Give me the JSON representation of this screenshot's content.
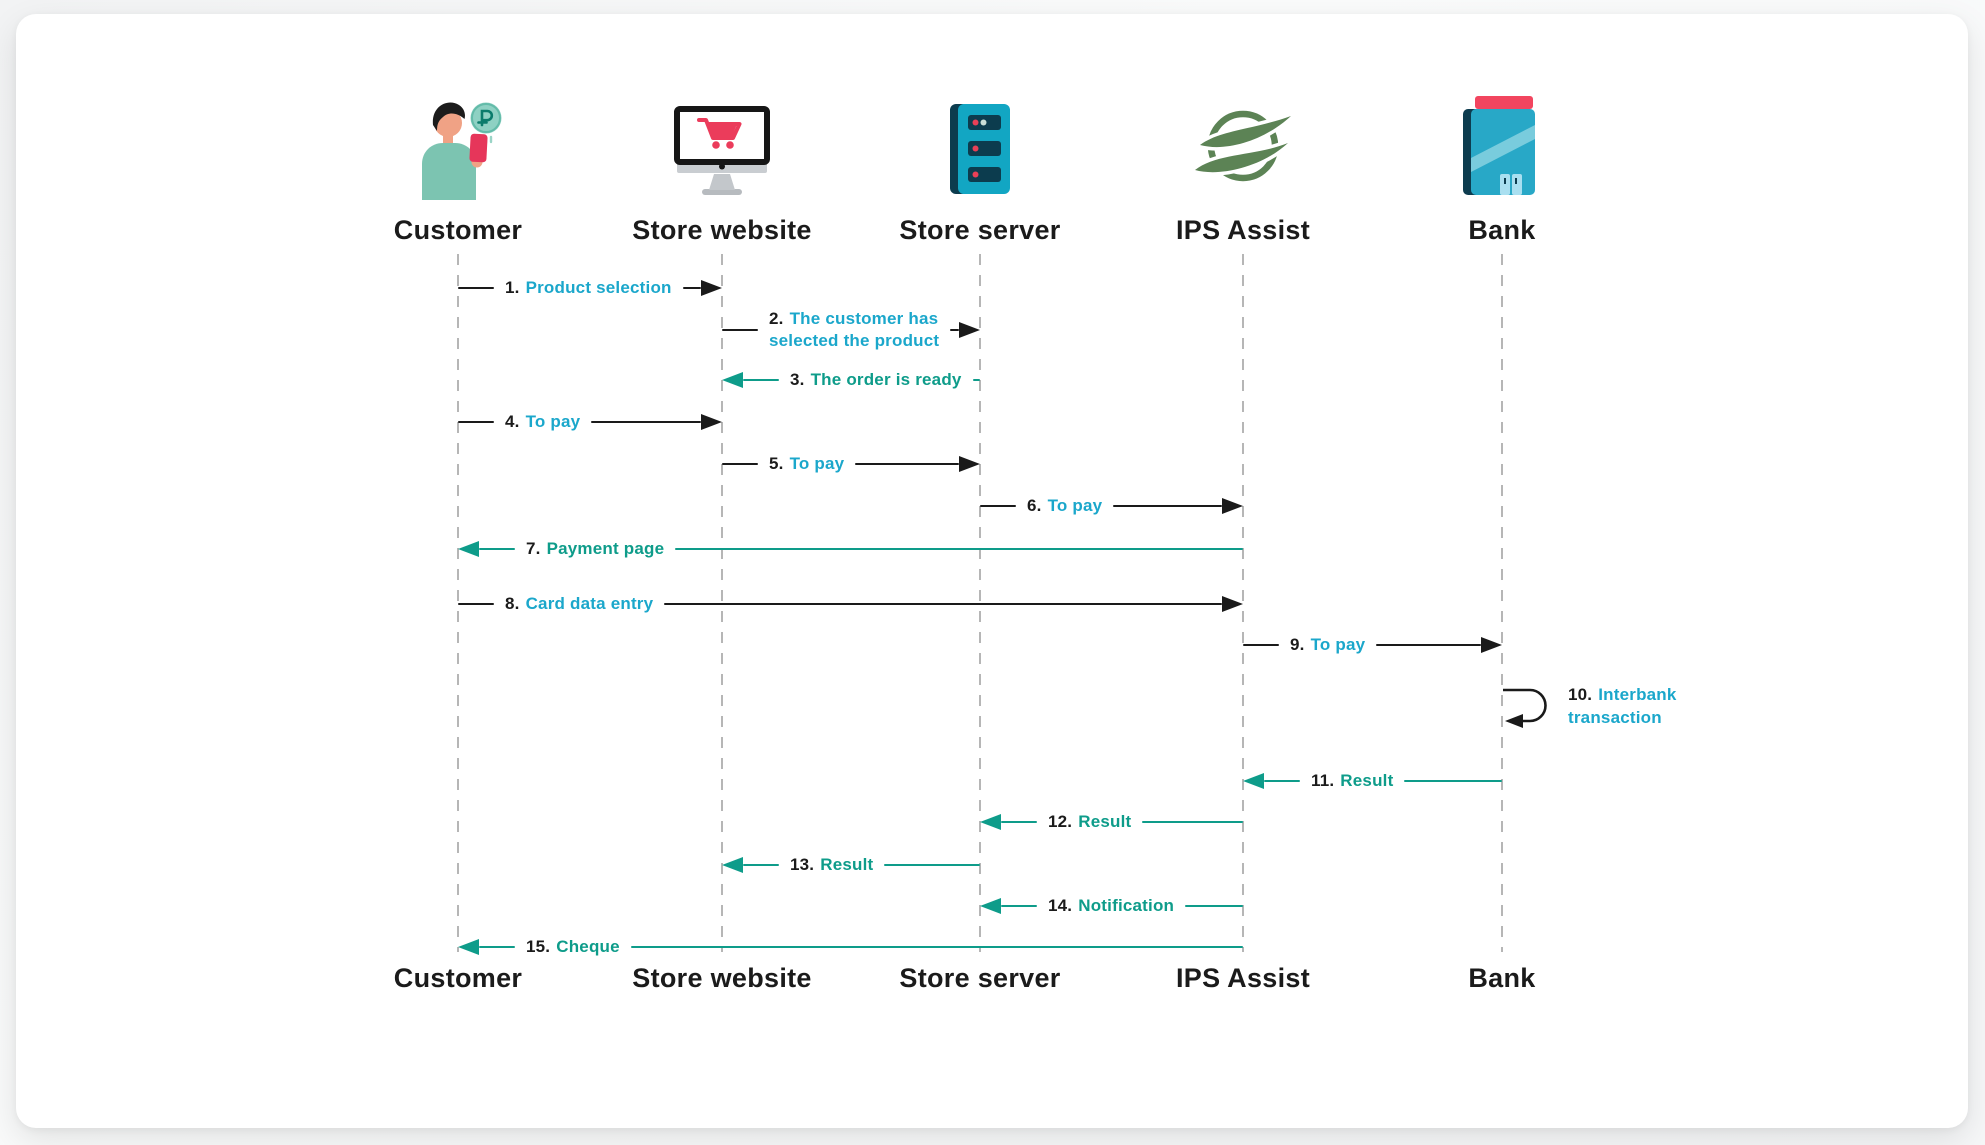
{
  "colors": {
    "request_label_cyan": "#1BA7CB",
    "response_teal": "#0E9C8A",
    "arrow_black": "#1A1A1A",
    "actor_label_black": "#1B1B1B",
    "lifeline_gray": "#B6B6B6"
  },
  "actors": [
    {
      "id": "customer",
      "label": "Customer",
      "icon": "customer-icon"
    },
    {
      "id": "website",
      "label": "Store website",
      "icon": "store-website-icon"
    },
    {
      "id": "server",
      "label": "Store server",
      "icon": "store-server-icon"
    },
    {
      "id": "ips",
      "label": "IPS Assist",
      "icon": "ips-assist-icon"
    },
    {
      "id": "bank",
      "label": "Bank",
      "icon": "bank-icon"
    }
  ],
  "messages": [
    {
      "num": "1.",
      "label": "Product selection",
      "from": "customer",
      "to": "website",
      "direction": "right",
      "arrow": "black",
      "label_color": "cyan"
    },
    {
      "num": "2.",
      "label": "The customer has selected the product",
      "lines": [
        "The customer has",
        "selected the product"
      ],
      "from": "website",
      "to": "server",
      "direction": "right",
      "arrow": "black",
      "label_color": "cyan"
    },
    {
      "num": "3.",
      "label": "The order is ready",
      "from": "server",
      "to": "website",
      "direction": "left",
      "arrow": "teal",
      "label_color": "teal"
    },
    {
      "num": "4.",
      "label": "To pay",
      "from": "customer",
      "to": "website",
      "direction": "right",
      "arrow": "black",
      "label_color": "cyan"
    },
    {
      "num": "5.",
      "label": "To pay",
      "from": "website",
      "to": "server",
      "direction": "right",
      "arrow": "black",
      "label_color": "cyan"
    },
    {
      "num": "6.",
      "label": "To pay",
      "from": "server",
      "to": "ips",
      "direction": "right",
      "arrow": "black",
      "label_color": "cyan"
    },
    {
      "num": "7.",
      "label": "Payment page",
      "from": "ips",
      "to": "customer",
      "direction": "left",
      "arrow": "teal",
      "label_color": "teal"
    },
    {
      "num": "8.",
      "label": "Card data entry",
      "from": "customer",
      "to": "ips",
      "direction": "right",
      "arrow": "black",
      "label_color": "cyan"
    },
    {
      "num": "9.",
      "label": "To pay",
      "from": "ips",
      "to": "bank",
      "direction": "right",
      "arrow": "black",
      "label_color": "cyan"
    },
    {
      "num": "10.",
      "label": "Interbank transaction",
      "lines": [
        "Interbank",
        "transaction"
      ],
      "from": "bank",
      "to": "bank",
      "direction": "self",
      "arrow": "black",
      "label_color": "cyan"
    },
    {
      "num": "11.",
      "label": "Result",
      "from": "bank",
      "to": "ips",
      "direction": "left",
      "arrow": "teal",
      "label_color": "teal"
    },
    {
      "num": "12.",
      "label": "Result",
      "from": "ips",
      "to": "server",
      "direction": "left",
      "arrow": "teal",
      "label_color": "teal"
    },
    {
      "num": "13.",
      "label": "Result",
      "from": "server",
      "to": "website",
      "direction": "left",
      "arrow": "teal",
      "label_color": "teal"
    },
    {
      "num": "14.",
      "label": "Notification",
      "from": "ips",
      "to": "server",
      "direction": "left",
      "arrow": "teal",
      "label_color": "teal"
    },
    {
      "num": "15.",
      "label": "Cheque",
      "from": "ips",
      "to": "customer",
      "direction": "left",
      "arrow": "teal",
      "label_color": "teal"
    }
  ]
}
